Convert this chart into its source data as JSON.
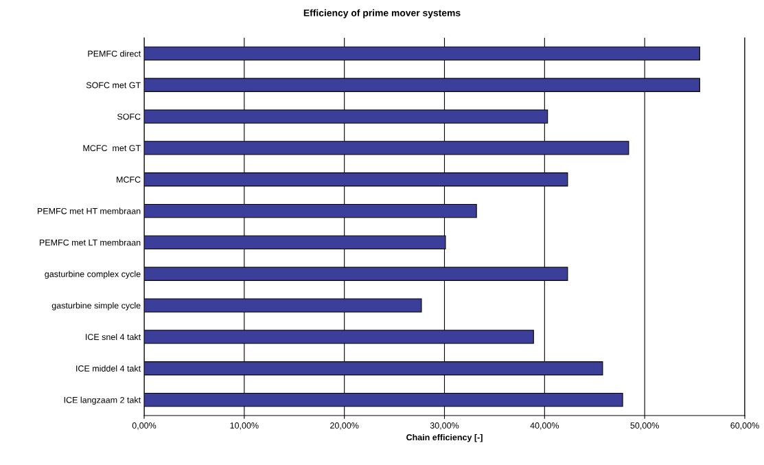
{
  "chart_data": {
    "type": "bar",
    "orientation": "horizontal",
    "title": "Efficiency of prime mover systems",
    "xlabel": "Chain efficiency [-]",
    "categories": [
      "PEMFC direct",
      "SOFC met GT",
      "SOFC",
      "MCFC  met GT",
      "MCFC",
      "PEMFC met HT membraan",
      "PEMFC met LT membraan",
      "gasturbine complex cycle",
      "gasturbine simple cycle",
      "ICE snel 4 takt",
      "ICE middel 4 takt",
      "ICE langzaam 2 takt"
    ],
    "values": [
      55.5,
      55.5,
      40.3,
      48.4,
      42.3,
      33.2,
      30.1,
      42.3,
      27.7,
      38.9,
      45.8,
      47.8
    ],
    "color": "#3c3f99",
    "xlim": [
      0,
      60
    ],
    "xticks": [
      {
        "value": 0,
        "label": "0,00%"
      },
      {
        "value": 10,
        "label": "10,00%"
      },
      {
        "value": 20,
        "label": "20,00%"
      },
      {
        "value": 30,
        "label": "30,00%"
      },
      {
        "value": 40,
        "label": "40,00%"
      },
      {
        "value": 50,
        "label": "50,00%"
      },
      {
        "value": 60,
        "label": "60,00%"
      }
    ],
    "grid": "x",
    "legend": false
  }
}
